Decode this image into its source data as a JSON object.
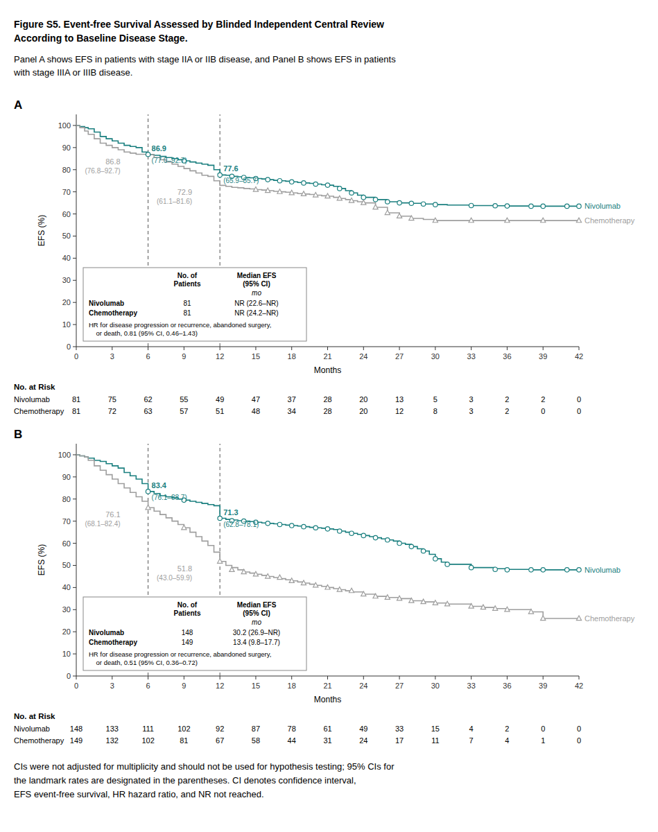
{
  "title_lines": [
    "Figure S5. Event-free Survival Assessed by Blinded Independent Central Review",
    "According to Baseline Disease Stage."
  ],
  "body_lines": [
    "Panel A shows EFS in patients with stage IIA or IIB disease, and Panel B shows EFS in patients",
    "with stage IIIA or IIIB disease."
  ],
  "footer_lines": [
    "CIs were not adjusted for multiplicity and should not be used for hypothesis testing; 95% CIs for",
    "the landmark rates are designated in the parentheses. CI denotes confidence interval,",
    "EFS event-free survival, HR hazard ratio, and NR not reached."
  ],
  "chart_data": [
    {
      "type": "step",
      "panel_label": "A",
      "xlabel": "Months",
      "ylabel": "EFS (%)",
      "xlim": [
        0,
        42
      ],
      "ylim": [
        0,
        105
      ],
      "xticks": [
        0,
        3,
        6,
        9,
        12,
        15,
        18,
        21,
        24,
        27,
        30,
        33,
        36,
        39,
        42
      ],
      "yticks": [
        0,
        10,
        20,
        30,
        40,
        50,
        60,
        70,
        80,
        90,
        100
      ],
      "grid": false,
      "reference_lines_x": [
        6,
        12
      ],
      "series": [
        {
          "name": "Nivolumab",
          "color": "#1a7f7f",
          "marker": "circle",
          "x": [
            0,
            0.3,
            0.7,
            1,
            1.5,
            2,
            2.5,
            3,
            3.5,
            4,
            4.5,
            5,
            5.5,
            6,
            6.5,
            7,
            7.5,
            8,
            8.5,
            9,
            9.5,
            10,
            10.5,
            11,
            11.5,
            12,
            12.5,
            13,
            13.5,
            14,
            14.5,
            15,
            15.5,
            16,
            16.5,
            17,
            17.5,
            18,
            18.5,
            19,
            19.5,
            20,
            20.5,
            21,
            21.5,
            22,
            22.5,
            23,
            23.5,
            24,
            25,
            26,
            27,
            28,
            29,
            30,
            31,
            33,
            35,
            36,
            38,
            39,
            41,
            42
          ],
          "values": [
            100,
            99.5,
            99,
            98.5,
            97,
            95,
            94,
            93,
            92,
            91,
            90.5,
            90,
            88,
            86.9,
            86.5,
            86,
            85.5,
            85,
            84.5,
            84,
            83.5,
            83,
            82.5,
            82,
            80,
            77.6,
            77.5,
            77,
            76.8,
            76.5,
            76.3,
            76,
            75.8,
            75.5,
            75.2,
            75,
            74.8,
            74.5,
            74.2,
            74,
            73.8,
            73.5,
            73.2,
            73,
            72.5,
            71.5,
            70.5,
            69.5,
            68.5,
            67.5,
            66.5,
            65.5,
            65,
            64.8,
            64.5,
            64.2,
            64,
            63.8,
            63.7,
            63.6,
            63.5,
            63.5,
            63.5,
            63.5
          ],
          "censor_x": [
            6,
            9,
            12,
            13,
            14,
            15,
            16,
            17,
            18,
            19,
            20,
            21,
            22,
            23,
            24,
            25,
            26,
            27,
            28,
            29,
            30,
            33,
            35,
            36,
            38,
            39,
            41,
            42
          ],
          "censor_values": [
            86.9,
            84,
            77.6,
            77,
            76.5,
            76,
            75.5,
            75,
            74.5,
            74,
            73.5,
            73,
            71.5,
            69.5,
            67.5,
            66.5,
            65.5,
            65,
            64.8,
            64.5,
            64.2,
            63.8,
            63.7,
            63.6,
            63.5,
            63.5,
            63.5,
            63.5
          ],
          "landmarks": [
            {
              "x": 6,
              "value": 86.9,
              "ci_label": "(77.0–92.7)"
            },
            {
              "x": 12,
              "value": 77.6,
              "ci_label": "(65.9–85.7)"
            }
          ]
        },
        {
          "name": "Chemotherapy",
          "color": "#9e9e9e",
          "marker": "triangle",
          "x": [
            0,
            0.3,
            0.7,
            1,
            1.5,
            2,
            2.5,
            3,
            3.5,
            4,
            4.5,
            5,
            5.5,
            6,
            6.5,
            7,
            7.5,
            8,
            8.5,
            9,
            9.5,
            10,
            10.5,
            11,
            11.5,
            12,
            12.5,
            13,
            13.5,
            14,
            14.5,
            15,
            15.5,
            16,
            16.5,
            17,
            17.5,
            18,
            18.5,
            19,
            19.5,
            20,
            20.5,
            21,
            21.5,
            22,
            22.5,
            23,
            23.5,
            24,
            25,
            26,
            27,
            28,
            29,
            30,
            33,
            36,
            39,
            42
          ],
          "values": [
            100,
            99,
            97.5,
            96,
            94,
            92,
            91,
            90,
            89,
            88,
            87.5,
            87,
            87,
            86.8,
            85.5,
            84.5,
            83.5,
            82.5,
            81.5,
            80.5,
            79.5,
            78.5,
            77.5,
            77,
            75,
            72.9,
            72.5,
            72,
            71.8,
            71.5,
            71.3,
            71,
            70.8,
            70.5,
            70.2,
            70,
            69.8,
            69.5,
            69.2,
            69,
            68.8,
            68.5,
            68.2,
            68,
            67.5,
            67,
            66.5,
            66,
            65.5,
            65,
            63,
            60.5,
            59,
            58,
            57.5,
            57,
            57,
            57,
            57,
            57
          ],
          "censor_x": [
            15,
            16,
            17,
            18,
            19,
            20,
            21,
            22,
            23,
            24,
            25,
            26,
            27,
            28,
            30,
            33,
            36,
            39,
            42
          ],
          "censor_values": [
            71,
            70.5,
            70,
            69.5,
            69,
            68.5,
            68,
            67,
            66,
            65,
            63,
            60.5,
            59,
            58,
            57,
            57,
            57,
            57,
            57
          ],
          "landmarks": [
            {
              "x": 6,
              "value": 86.8,
              "ci_label": "(76.8–92.7)"
            },
            {
              "x": 12,
              "value": 72.9,
              "ci_label": "(61.1–81.6)"
            }
          ]
        }
      ],
      "table": {
        "header": [
          "No. of\nPatients",
          "Median EFS\n(95% CI)"
        ],
        "unit": "mo",
        "rows": [
          {
            "name": "Nivolumab",
            "n": 81,
            "median": "NR (22.6–NR)"
          },
          {
            "name": "Chemotherapy",
            "n": 81,
            "median": "NR (24.2–NR)"
          }
        ],
        "hr_text": "HR for disease progression or recurrence, abandoned surgery,\n    or death, 0.81 (95% CI, 0.46–1.43)"
      },
      "at_risk": {
        "title": "No. at Risk",
        "x": [
          0,
          3,
          6,
          9,
          12,
          15,
          18,
          21,
          24,
          27,
          30,
          33,
          36,
          39,
          42
        ],
        "rows": [
          {
            "name": "Nivolumab",
            "values": [
              81,
              75,
              62,
              55,
              49,
              47,
              37,
              28,
              20,
              13,
              5,
              3,
              2,
              2,
              0
            ]
          },
          {
            "name": "Chemotherapy",
            "values": [
              81,
              72,
              63,
              57,
              51,
              48,
              34,
              28,
              20,
              12,
              8,
              3,
              2,
              0,
              0
            ]
          }
        ]
      }
    },
    {
      "type": "step",
      "panel_label": "B",
      "xlabel": "Months",
      "ylabel": "EFS (%)",
      "xlim": [
        0,
        42
      ],
      "ylim": [
        0,
        105
      ],
      "xticks": [
        0,
        3,
        6,
        9,
        12,
        15,
        18,
        21,
        24,
        27,
        30,
        33,
        36,
        39,
        42
      ],
      "yticks": [
        0,
        10,
        20,
        30,
        40,
        50,
        60,
        70,
        80,
        90,
        100
      ],
      "grid": false,
      "reference_lines_x": [
        6,
        12
      ],
      "series": [
        {
          "name": "Nivolumab",
          "color": "#1a7f7f",
          "marker": "circle",
          "x": [
            0,
            0.3,
            0.7,
            1,
            1.5,
            2,
            2.5,
            3,
            3.5,
            4,
            4.5,
            5,
            5.5,
            6,
            6.5,
            7,
            7.5,
            8,
            8.5,
            9,
            9.5,
            10,
            10.5,
            11,
            11.5,
            12,
            12.5,
            13,
            13.5,
            14,
            14.5,
            15,
            15.5,
            16,
            16.5,
            17,
            17.5,
            18,
            18.5,
            19,
            19.5,
            20,
            20.5,
            21,
            21.5,
            22,
            22.5,
            23,
            23.5,
            24,
            24.5,
            25,
            25.5,
            26,
            26.5,
            27,
            27.5,
            28,
            28.5,
            29,
            29.5,
            30,
            30.5,
            31,
            33,
            35,
            36,
            38,
            39,
            41,
            42
          ],
          "values": [
            100,
            99.5,
            99,
            98.5,
            97.5,
            97,
            96,
            95,
            94,
            92,
            90.5,
            89,
            87,
            83.4,
            82.5,
            81.5,
            81,
            80.5,
            80,
            79.5,
            79,
            78.5,
            78,
            77.5,
            77,
            71.3,
            70.8,
            70.5,
            70.2,
            70,
            69.8,
            69.5,
            69.2,
            69,
            68.8,
            68.5,
            68.2,
            68,
            67.8,
            67.5,
            67.2,
            67,
            66.8,
            66.5,
            66.2,
            65.5,
            65,
            64.5,
            64,
            63.5,
            63,
            62.5,
            62,
            61.5,
            61,
            60,
            59.5,
            58.5,
            57.5,
            56.5,
            55,
            53,
            51.5,
            50.5,
            49,
            48.5,
            48.2,
            48,
            48,
            48,
            48
          ],
          "censor_x": [
            6,
            9,
            12,
            13,
            14,
            15,
            16,
            17,
            18,
            19,
            20,
            21,
            22,
            23,
            24,
            25,
            26,
            27,
            28,
            29,
            30,
            31,
            33,
            35,
            36,
            38,
            39,
            41,
            42
          ],
          "censor_values": [
            83.4,
            79.5,
            71.3,
            70.2,
            70,
            69.5,
            69,
            68.5,
            68,
            67.5,
            67,
            66.5,
            65.5,
            64.5,
            63.5,
            62.5,
            61.5,
            60,
            58.5,
            56.5,
            53,
            50.5,
            49,
            48.2,
            48,
            48,
            48,
            48,
            48
          ],
          "landmarks": [
            {
              "x": 6,
              "value": 83.4,
              "ci_label": "(76.1–88.7)"
            },
            {
              "x": 12,
              "value": 71.3,
              "ci_label": "(62.8–78.1)"
            }
          ]
        },
        {
          "name": "Chemotherapy",
          "color": "#9e9e9e",
          "marker": "triangle",
          "x": [
            0,
            0.3,
            0.7,
            1,
            1.5,
            2,
            2.5,
            3,
            3.5,
            4,
            4.5,
            5,
            5.5,
            6,
            6.5,
            7,
            7.5,
            8,
            8.5,
            9,
            9.5,
            10,
            10.5,
            11,
            11.5,
            12,
            12.5,
            13,
            13.5,
            14,
            14.5,
            15,
            15.5,
            16,
            16.5,
            17,
            17.5,
            18,
            18.5,
            19,
            19.5,
            20,
            20.5,
            21,
            21.5,
            22,
            22.5,
            23,
            24,
            25,
            26,
            27,
            28,
            29,
            30,
            31,
            33,
            34,
            35,
            36,
            38,
            39,
            42
          ],
          "values": [
            100,
            99.5,
            99,
            97.5,
            95,
            93,
            91,
            89,
            87,
            85,
            83,
            81,
            79,
            76.1,
            74.5,
            73,
            71.5,
            70,
            68.5,
            67,
            65,
            63,
            61,
            59,
            56,
            51.8,
            50,
            49,
            48,
            47,
            46.5,
            46,
            45.5,
            45,
            44.5,
            44,
            43.5,
            43,
            42.5,
            42,
            41.5,
            41,
            40.5,
            40,
            39.5,
            39,
            38.5,
            38,
            37,
            36,
            35.5,
            35,
            34,
            33.5,
            33,
            32.5,
            31.5,
            31,
            30.5,
            30,
            29,
            26,
            26
          ],
          "censor_x": [
            6,
            9,
            12,
            13,
            14,
            15,
            16,
            17,
            18,
            19,
            20,
            21,
            22,
            23,
            24,
            25,
            26,
            27,
            28,
            29,
            30,
            31,
            33,
            34,
            35,
            36,
            38,
            39,
            42
          ],
          "censor_values": [
            76.1,
            67,
            51.8,
            48,
            47,
            46,
            45,
            44.5,
            43,
            42,
            41,
            40,
            39,
            38.5,
            37,
            36,
            35.5,
            35,
            34,
            33.5,
            33,
            32.5,
            31.5,
            31,
            30.5,
            30,
            29,
            26,
            26
          ],
          "landmarks": [
            {
              "x": 6,
              "value": 76.1,
              "ci_label": "(68.1–82.4)"
            },
            {
              "x": 12,
              "value": 51.8,
              "ci_label": "(43.0–59.9)"
            }
          ]
        }
      ],
      "table": {
        "header": [
          "No. of\nPatients",
          "Median EFS\n(95% CI)"
        ],
        "unit": "mo",
        "rows": [
          {
            "name": "Nivolumab",
            "n": 148,
            "median": "30.2 (26.9–NR)"
          },
          {
            "name": "Chemotherapy",
            "n": 149,
            "median": "13.4 (9.8–17.7)"
          }
        ],
        "hr_text": "HR for disease progression or recurrence, abandoned surgery,\n    or death, 0.51 (95% CI, 0.36–0.72)"
      },
      "at_risk": {
        "title": "No. at Risk",
        "x": [
          0,
          3,
          6,
          9,
          12,
          15,
          18,
          21,
          24,
          27,
          30,
          33,
          36,
          39,
          42
        ],
        "rows": [
          {
            "name": "Nivolumab",
            "values": [
              148,
              133,
              111,
              102,
              92,
              87,
              78,
              61,
              49,
              33,
              15,
              4,
              2,
              0,
              0
            ]
          },
          {
            "name": "Chemotherapy",
            "values": [
              149,
              132,
              102,
              81,
              67,
              58,
              44,
              31,
              24,
              17,
              11,
              7,
              4,
              1,
              0
            ]
          }
        ]
      }
    }
  ]
}
